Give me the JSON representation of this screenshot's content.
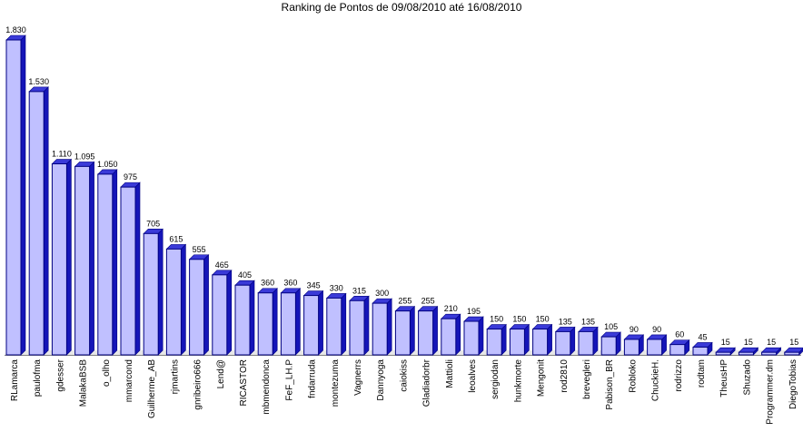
{
  "chart_data": {
    "type": "bar",
    "title": "Ranking de Pontos de 09/08/2010 até 16/08/2010",
    "xlabel": "",
    "ylabel": "",
    "ylim": [
      0,
      1830
    ],
    "grid": false,
    "legend": "none",
    "colors": {
      "bar_front": "#c0c0ff",
      "bar_side": "#1515b8",
      "bar_top": "#3a3ad8",
      "bar_edge": "#000080",
      "floor": "#808080"
    },
    "categories": [
      "RLamarca",
      "paulofma",
      "gdesser",
      "MalakaBSB",
      "o_olho",
      "mmarcond",
      "Guilherme_AB",
      "rjmartins",
      "gnribeiro666",
      "Lend@",
      "RICASTOR",
      "mbmendonca",
      "FeF_LH.P",
      "fndarruda",
      "montezuma",
      "Vagnerrs",
      "Dannyoga",
      "caiokiss",
      "Gladiadorbr",
      "Mattioli",
      "leoalves",
      "sergiodan",
      "hunkmorte",
      "Mengonit",
      "rod2810",
      "brevegleri",
      "Pabison_BR",
      "Robloko",
      "ChuckieH.",
      "rodrizzo",
      "rodtam",
      "TheusHP",
      "Shuzado",
      "Programmer.dm",
      "DiegoTobias"
    ],
    "values": [
      1830,
      1530,
      1110,
      1095,
      1050,
      975,
      705,
      615,
      555,
      465,
      405,
      360,
      360,
      345,
      330,
      315,
      300,
      255,
      255,
      210,
      195,
      150,
      150,
      150,
      135,
      135,
      105,
      90,
      90,
      60,
      45,
      15,
      15,
      15,
      15
    ],
    "value_labels": [
      "1.830",
      "1.530",
      "1.110",
      "1.095",
      "1.050",
      "975",
      "705",
      "615",
      "555",
      "465",
      "405",
      "360",
      "360",
      "345",
      "330",
      "315",
      "300",
      "255",
      "255",
      "210",
      "195",
      "150",
      "150",
      "150",
      "135",
      "135",
      "105",
      "90",
      "90",
      "60",
      "45",
      "15",
      "15",
      "15",
      "15"
    ]
  }
}
